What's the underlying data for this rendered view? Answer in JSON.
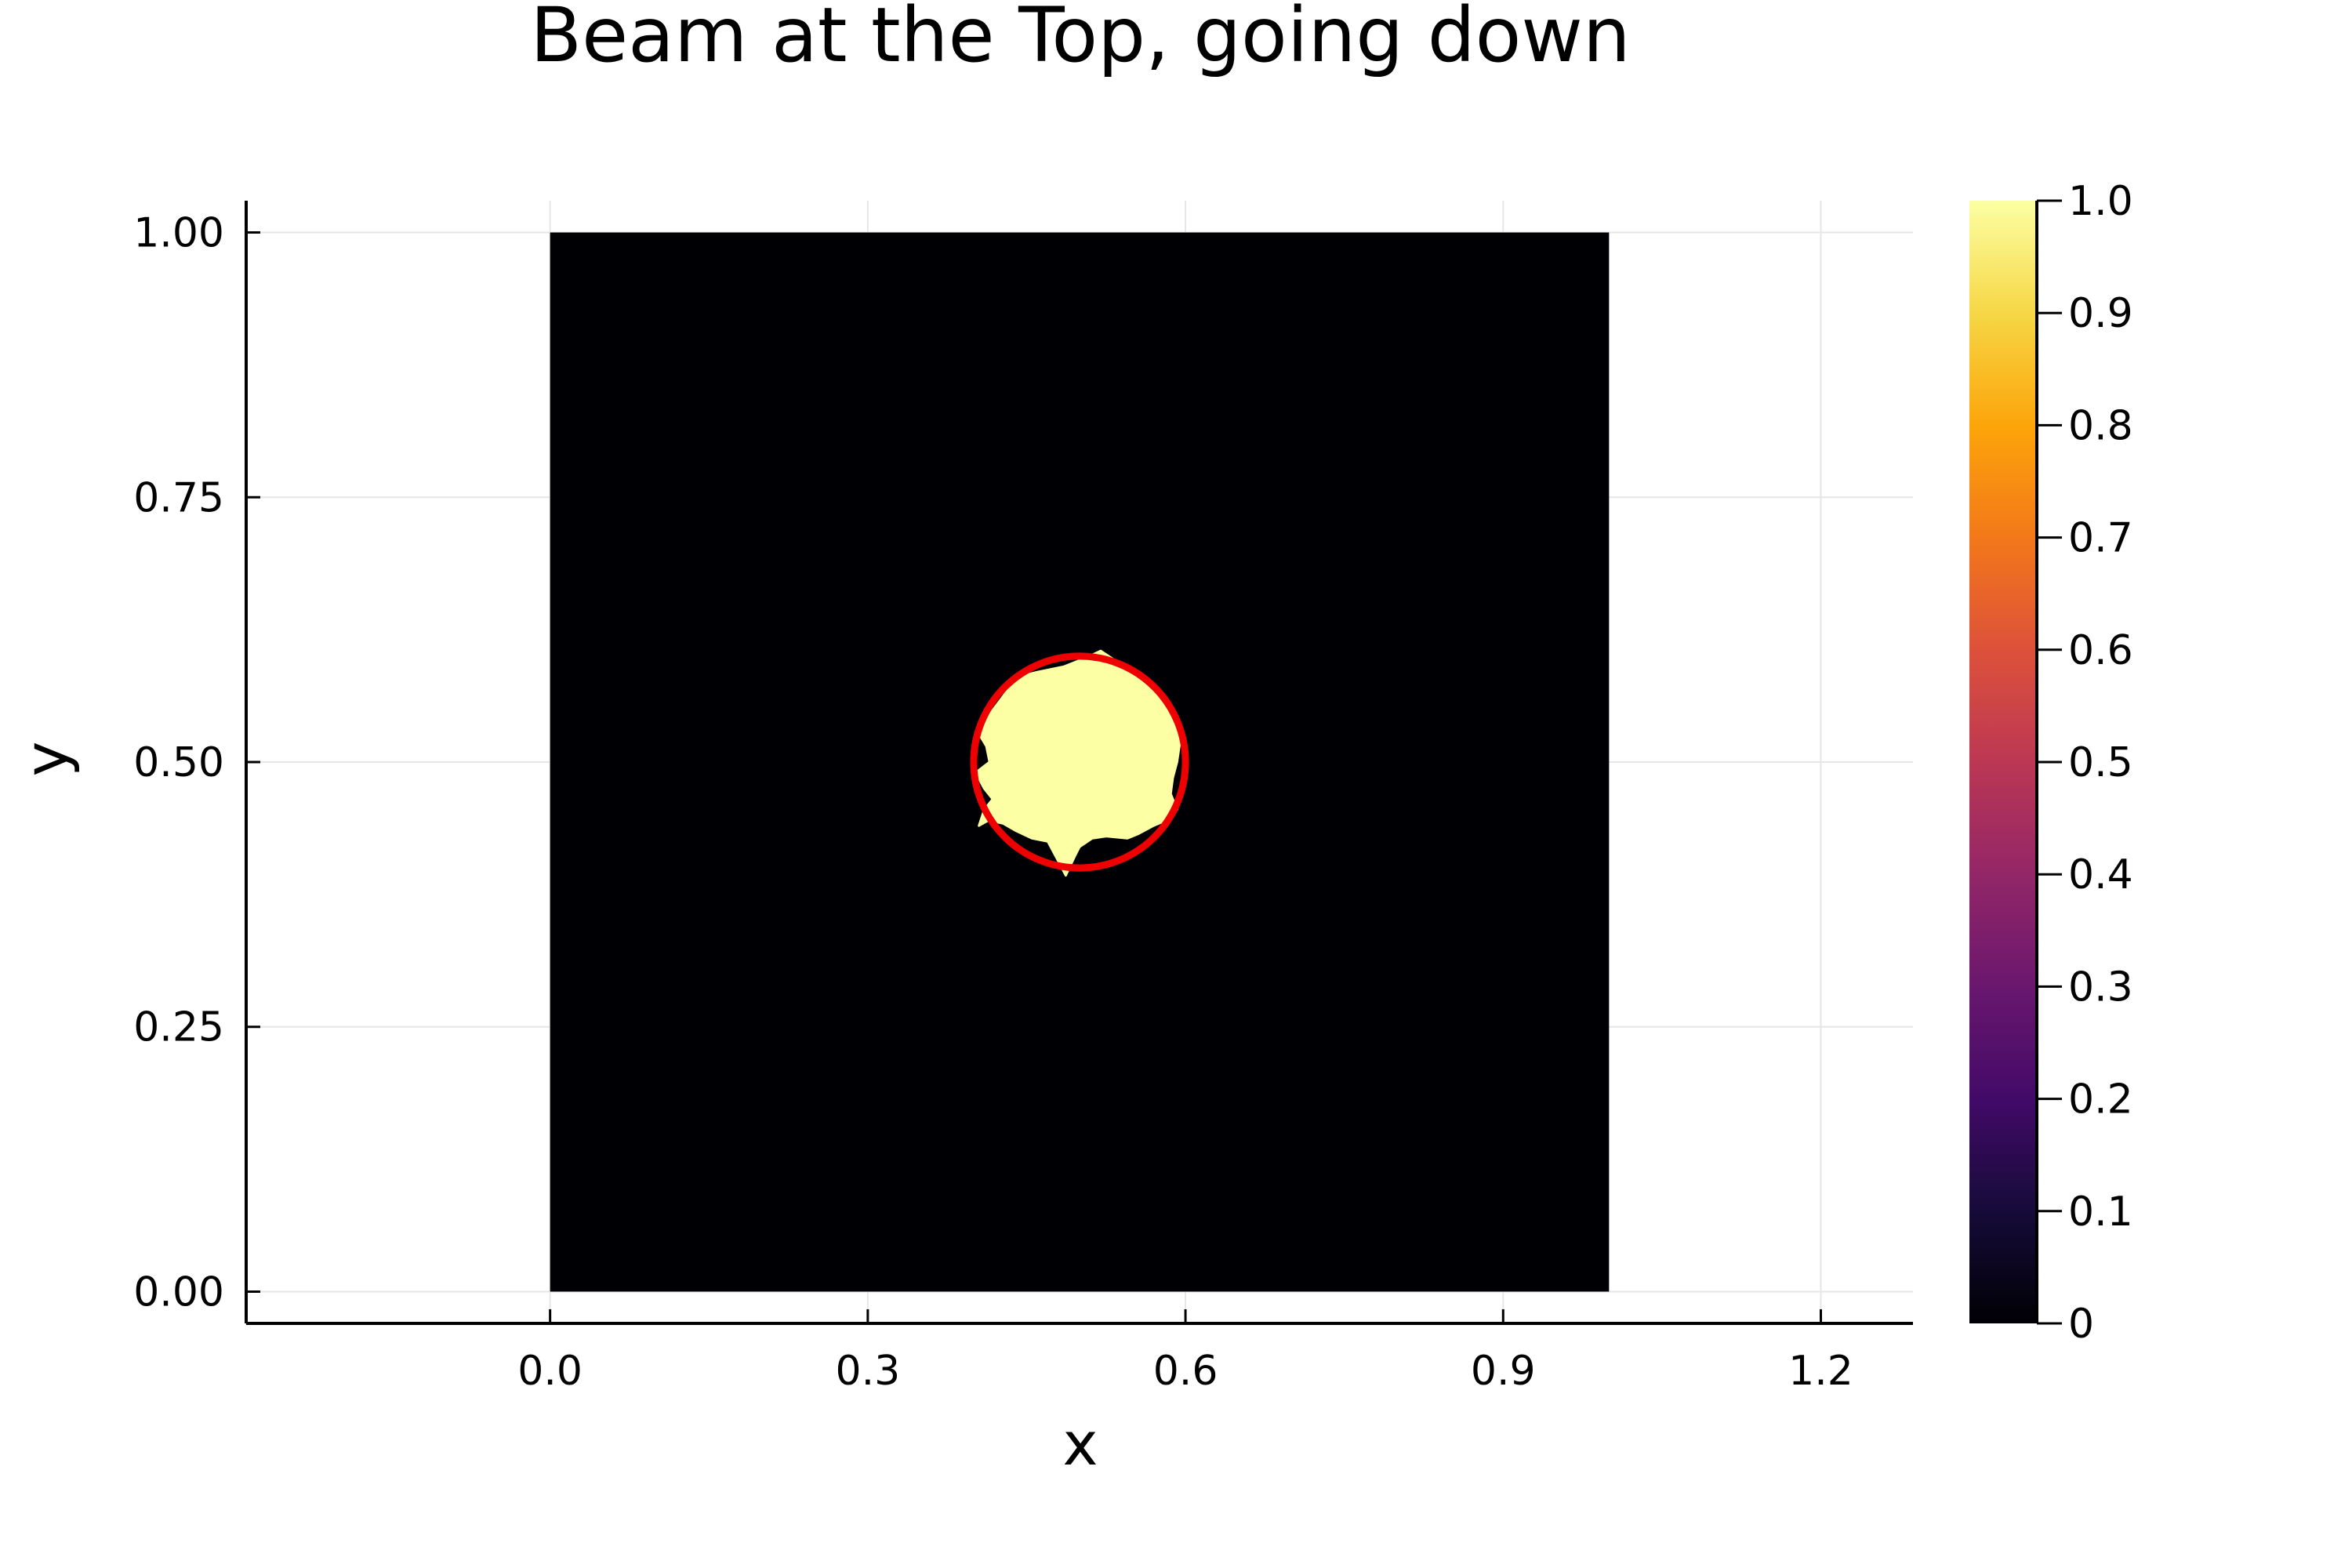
{
  "chart_data": {
    "type": "heatmap",
    "title": "Beam at the Top, going down",
    "xlabel": "x",
    "ylabel": "y",
    "xlim": [
      -0.287,
      1.287
    ],
    "ylim": [
      -0.03,
      1.03
    ],
    "x_ticks": [
      0.0,
      0.3,
      0.6,
      0.9,
      1.2
    ],
    "x_tick_labels": [
      "0.0",
      "0.3",
      "0.6",
      "0.9",
      "1.2"
    ],
    "y_ticks": [
      0.0,
      0.25,
      0.5,
      0.75,
      1.0
    ],
    "y_tick_labels": [
      "0.00",
      "0.25",
      "0.50",
      "0.75",
      "1.00"
    ],
    "grid": true,
    "field_domain": {
      "x": [
        0.0,
        1.0
      ],
      "y": [
        0.0,
        1.0
      ]
    },
    "background_value": 0,
    "beam": {
      "value": 1,
      "center": [
        0.5,
        0.5
      ],
      "boundary": [
        [
          0.485,
          0.59
        ],
        [
          0.505,
          0.598
        ],
        [
          0.52,
          0.605
        ],
        [
          0.535,
          0.595
        ],
        [
          0.552,
          0.588
        ],
        [
          0.565,
          0.575
        ],
        [
          0.575,
          0.565
        ],
        [
          0.582,
          0.555
        ],
        [
          0.59,
          0.538
        ],
        [
          0.595,
          0.52
        ],
        [
          0.592,
          0.5
        ],
        [
          0.588,
          0.485
        ],
        [
          0.586,
          0.47
        ],
        [
          0.592,
          0.455
        ],
        [
          0.582,
          0.445
        ],
        [
          0.57,
          0.44
        ],
        [
          0.555,
          0.432
        ],
        [
          0.545,
          0.428
        ],
        [
          0.525,
          0.43
        ],
        [
          0.512,
          0.428
        ],
        [
          0.5,
          0.42
        ],
        [
          0.495,
          0.41
        ],
        [
          0.487,
          0.393
        ],
        [
          0.478,
          0.41
        ],
        [
          0.47,
          0.425
        ],
        [
          0.455,
          0.428
        ],
        [
          0.44,
          0.435
        ],
        [
          0.428,
          0.442
        ],
        [
          0.414,
          0.445
        ],
        [
          0.405,
          0.44
        ],
        [
          0.41,
          0.455
        ],
        [
          0.418,
          0.465
        ],
        [
          0.41,
          0.475
        ],
        [
          0.402,
          0.49
        ],
        [
          0.415,
          0.5
        ],
        [
          0.412,
          0.515
        ],
        [
          0.406,
          0.525
        ],
        [
          0.415,
          0.545
        ],
        [
          0.43,
          0.565
        ],
        [
          0.44,
          0.58
        ],
        [
          0.46,
          0.585
        ]
      ]
    },
    "reference_circle": {
      "center": [
        0.5,
        0.5
      ],
      "radius": 0.1,
      "color": "#ee0000"
    },
    "colorbar": {
      "colormap": "inferno",
      "range": [
        0,
        1
      ],
      "ticks": [
        0,
        0.1,
        0.2,
        0.3,
        0.4,
        0.5,
        0.6,
        0.7,
        0.8,
        0.9,
        1.0
      ],
      "tick_labels": [
        "0",
        "0.1",
        "0.2",
        "0.3",
        "0.4",
        "0.5",
        "0.6",
        "0.7",
        "0.8",
        "0.9",
        "1.0"
      ],
      "stops": [
        "#000004",
        "#160b39",
        "#420a68",
        "#6a176e",
        "#932667",
        "#bc3754",
        "#dd513a",
        "#f37819",
        "#fca50a",
        "#f6d746",
        "#fcffa4"
      ]
    }
  }
}
